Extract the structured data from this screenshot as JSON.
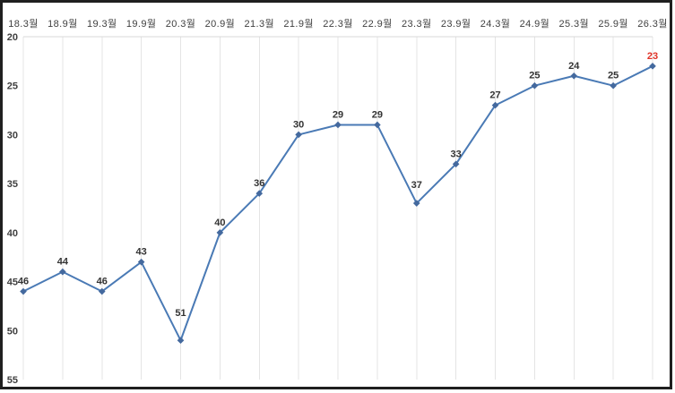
{
  "chart_data": {
    "type": "line",
    "title": "",
    "xlabel": "",
    "ylabel": "",
    "categories": [
      "18.3월",
      "18.9월",
      "19.3월",
      "19.9월",
      "20.3월",
      "20.9월",
      "21.3월",
      "21.9월",
      "22.3월",
      "22.9월",
      "23.3월",
      "23.9월",
      "24.3월",
      "24.9월",
      "25.3월",
      "25.9월",
      "26.3월"
    ],
    "values": [
      46,
      44,
      46,
      43,
      51,
      40,
      36,
      30,
      29,
      29,
      37,
      33,
      27,
      25,
      24,
      25,
      23
    ],
    "data_labels": [
      "46",
      "44",
      "46",
      "43",
      "51",
      "40",
      "36",
      "30",
      "29",
      "29",
      "37",
      "33",
      "27",
      "25",
      "24",
      "25",
      "23"
    ],
    "y_ticks": [
      "20",
      "25",
      "30",
      "35",
      "40",
      "45",
      "50",
      "55"
    ],
    "ylim": [
      20,
      55
    ],
    "y_axis_reversed": true,
    "x_axis_position": "top",
    "grid": "vertical-only",
    "legend_position": "none",
    "colors": {
      "line": "#4a7ab5",
      "marker": "#44699e",
      "grid": "#e4e4e4",
      "axis_line": "#d8d8d8",
      "axis_text": "#404040",
      "data_label": "#333333",
      "last_data_label": "#e03227",
      "frame": "#1f1f1f",
      "background": "#ffffff"
    }
  }
}
